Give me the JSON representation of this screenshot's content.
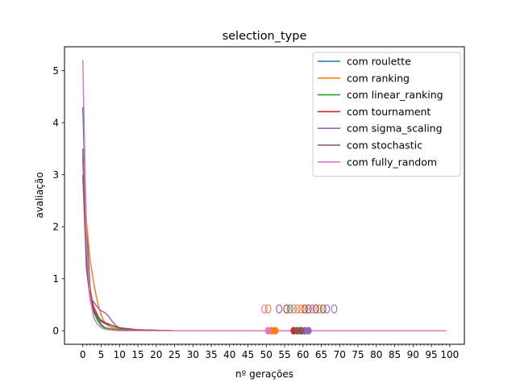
{
  "chart_data": {
    "type": "line",
    "title": "selection_type",
    "xlabel": "nº gerações",
    "ylabel": "avaliação",
    "xlim": [
      -5,
      104
    ],
    "ylim": [
      -0.26,
      5.46
    ],
    "x_ticks": [
      0,
      5,
      10,
      15,
      20,
      25,
      30,
      35,
      40,
      45,
      50,
      55,
      60,
      65,
      70,
      75,
      80,
      85,
      90,
      95,
      100
    ],
    "x_tick_labels": [
      "0",
      "5",
      "10",
      "15",
      "20",
      "25",
      "30",
      "35",
      "40",
      "45",
      "50",
      "55",
      "60",
      "65",
      "70",
      "75",
      "80",
      "85",
      "90",
      "95",
      "100"
    ],
    "x_minor_step": 1,
    "y_ticks": [
      0,
      1,
      2,
      3,
      4,
      5
    ],
    "y_tick_labels": [
      "0",
      "1",
      "2",
      "3",
      "4",
      "5"
    ],
    "grid": false,
    "legend_position": "top-right",
    "series": [
      {
        "name": "com roulette",
        "color": "#1f77b4",
        "x": [
          0,
          1,
          2,
          3,
          4,
          5,
          6,
          7,
          8,
          9,
          10,
          12,
          15,
          20,
          25,
          99
        ],
        "y": [
          4.3,
          2.0,
          0.8,
          0.4,
          0.25,
          0.12,
          0.06,
          0.04,
          0.03,
          0.02,
          0.02,
          0.01,
          0.005,
          0.002,
          0,
          0
        ],
        "o_markers": [],
        "dot_markers": [
          57.5,
          58.5,
          60.5,
          61.5
        ]
      },
      {
        "name": "com ranking",
        "color": "#ff7f0e",
        "x": [
          0,
          1,
          2,
          3,
          4,
          5,
          6,
          7,
          8,
          9,
          10,
          12,
          15,
          20,
          25,
          99
        ],
        "y": [
          3.4,
          2.1,
          1.35,
          0.9,
          0.55,
          0.3,
          0.15,
          0.09,
          0.06,
          0.04,
          0.03,
          0.02,
          0.01,
          0.003,
          0,
          0
        ],
        "o_markers": [
          50.5,
          53.5,
          58.5,
          59.5,
          64.5
        ],
        "dot_markers": [
          51.5,
          52.5
        ]
      },
      {
        "name": "com linear_ranking",
        "color": "#2ca02c",
        "x": [
          0,
          1,
          2,
          3,
          4,
          5,
          6,
          7,
          8,
          9,
          10,
          12,
          15,
          20,
          25,
          99
        ],
        "y": [
          3.5,
          1.5,
          0.7,
          0.35,
          0.2,
          0.1,
          0.05,
          0.04,
          0.03,
          0.02,
          0.02,
          0.01,
          0.005,
          0.002,
          0,
          0
        ],
        "o_markers": [
          56.5,
          61.5
        ],
        "dot_markers": [
          57.5
        ]
      },
      {
        "name": "com tournament",
        "color": "#d62728",
        "x": [
          0,
          1,
          2,
          3,
          4,
          5,
          6,
          7,
          8,
          9,
          10,
          12,
          15,
          20,
          25,
          99
        ],
        "y": [
          3.3,
          1.6,
          0.75,
          0.45,
          0.3,
          0.18,
          0.14,
          0.12,
          0.1,
          0.08,
          0.06,
          0.04,
          0.02,
          0.01,
          0,
          0
        ],
        "o_markers": [
          55.5,
          60.5,
          62.5
        ],
        "dot_markers": [
          57.5,
          59.5
        ]
      },
      {
        "name": "com sigma_scaling",
        "color": "#9467bd",
        "x": [
          0,
          1,
          2,
          3,
          4,
          5,
          6,
          7,
          8,
          9,
          10,
          12,
          15,
          20,
          25,
          99
        ],
        "y": [
          3.5,
          1.3,
          0.65,
          0.55,
          0.45,
          0.38,
          0.35,
          0.28,
          0.18,
          0.1,
          0.06,
          0.03,
          0.015,
          0.005,
          0,
          0
        ],
        "o_markers": [
          53.5,
          57.5,
          63.5,
          66.5,
          68.5
        ],
        "dot_markers": [
          59.5,
          60.5,
          61.5
        ]
      },
      {
        "name": "com stochastic",
        "color": "#8c564b",
        "x": [
          0,
          1,
          2,
          3,
          4,
          5,
          6,
          7,
          8,
          9,
          10,
          12,
          15,
          20,
          25,
          99
        ],
        "y": [
          3.0,
          1.2,
          0.6,
          0.38,
          0.28,
          0.2,
          0.16,
          0.13,
          0.1,
          0.07,
          0.05,
          0.03,
          0.02,
          0.01,
          0,
          0
        ],
        "o_markers": [
          61.5,
          63.5,
          65.5
        ],
        "dot_markers": [
          58.5,
          59.5
        ]
      },
      {
        "name": "com fully_random",
        "color": "#e377c2",
        "x": [
          0,
          1,
          2,
          3,
          4,
          5,
          6,
          7,
          8,
          9,
          10,
          12,
          15,
          20,
          25,
          99
        ],
        "y": [
          5.2,
          1.7,
          0.6,
          0.25,
          0.12,
          0.06,
          0.03,
          0.02,
          0.01,
          0.005,
          0,
          0,
          0,
          0,
          0,
          0
        ],
        "o_markers": [
          49.5,
          57.5,
          62.5
        ],
        "dot_markers": [
          50.5
        ]
      }
    ],
    "o_marker_y": 0.42,
    "dot_marker_y": 0
  }
}
